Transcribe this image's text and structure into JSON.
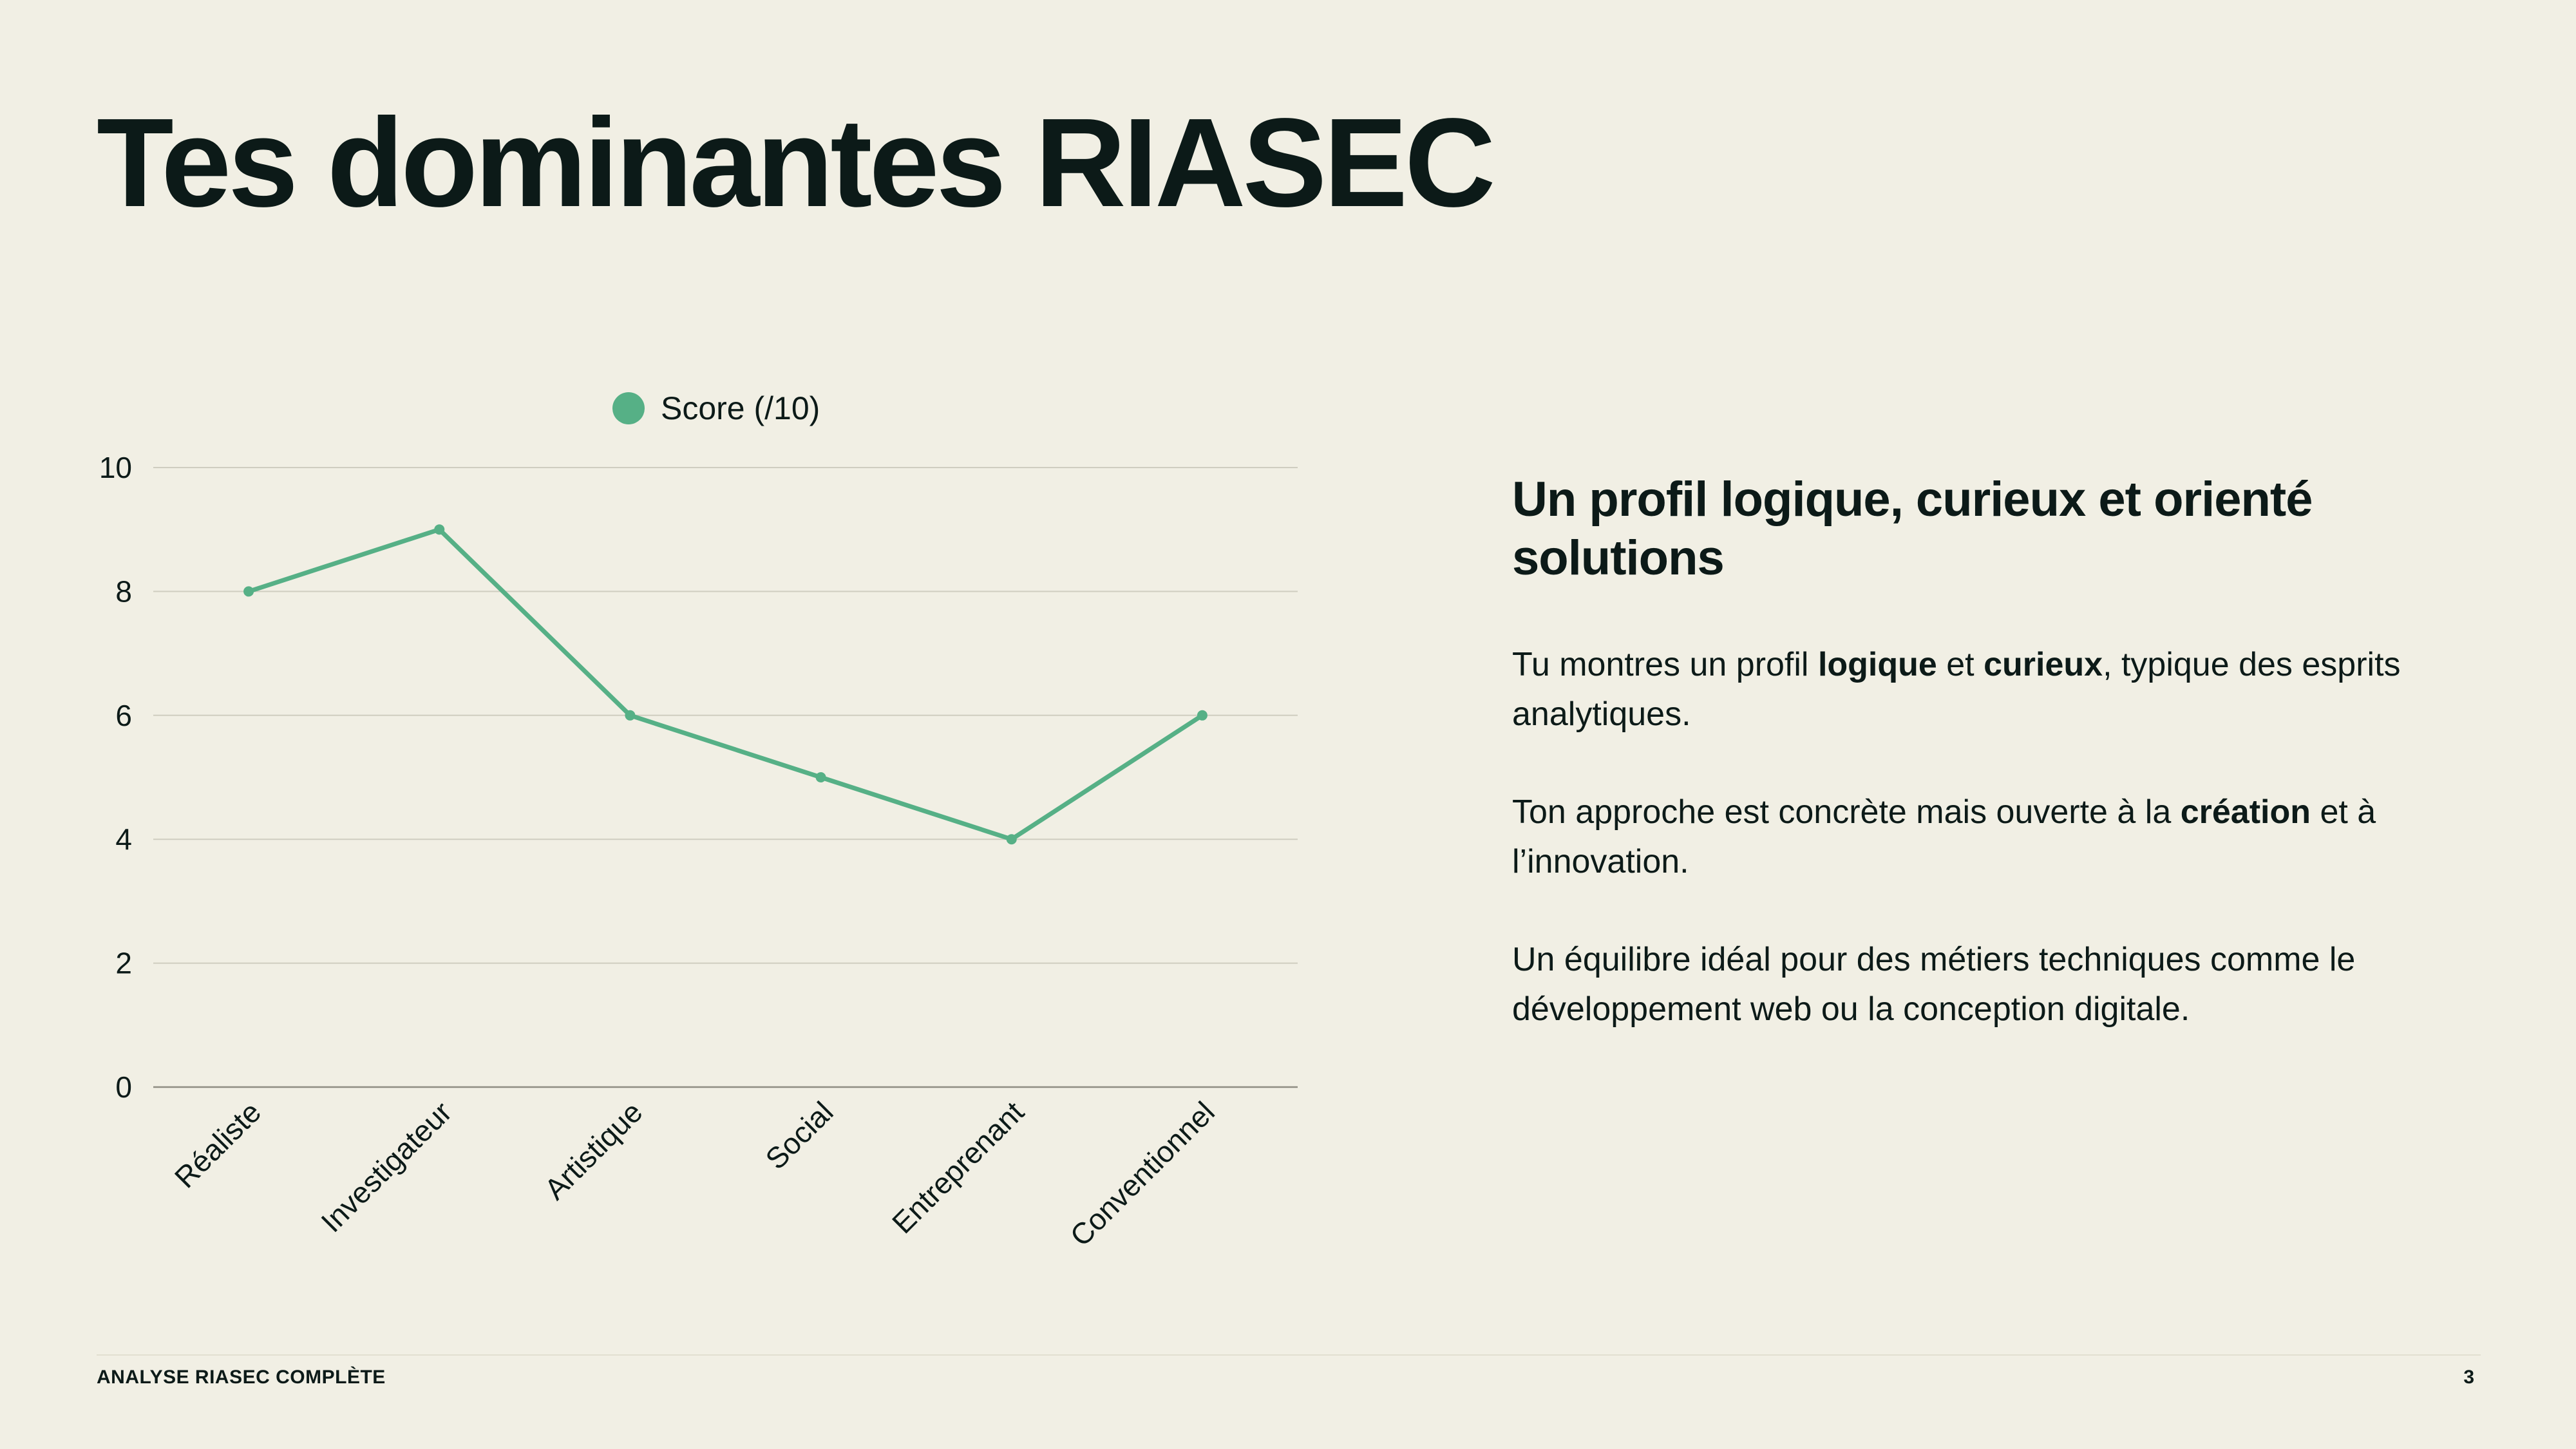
{
  "page": {
    "title": "Tes dominantes RIASEC",
    "footer_left": "ANALYSE RIASEC COMPLÈTE",
    "page_number": "3"
  },
  "panel": {
    "heading": "Un profil logique, curieux et orienté solutions",
    "paragraphs": [
      [
        {
          "text": "Tu montres un profil ",
          "bold": false
        },
        {
          "text": "logique",
          "bold": true
        },
        {
          "text": " et ",
          "bold": false
        },
        {
          "text": "curieux",
          "bold": true
        },
        {
          "text": ", typique des esprits analytiques.",
          "bold": false
        }
      ],
      [
        {
          "text": "Ton approche est concrète mais ouverte à la ",
          "bold": false
        },
        {
          "text": "création",
          "bold": true
        },
        {
          "text": " et à l’innovation.",
          "bold": false
        }
      ],
      [
        {
          "text": "Un équilibre idéal pour des métiers techniques comme le développement web ou la conception digitale.",
          "bold": false
        }
      ]
    ]
  },
  "colors": {
    "background": "#f1efe4",
    "text": "#0c1a18",
    "line": "#56b086",
    "grid": "#cfcdc0",
    "axis": "#8f8d82"
  },
  "chart_data": {
    "type": "line",
    "categories": [
      "Réaliste",
      "Investigateur",
      "Artistique",
      "Social",
      "Entreprenant",
      "Conventionnel"
    ],
    "series": [
      {
        "name": "Score (/10)",
        "values": [
          8,
          9,
          6,
          5,
          4,
          6
        ],
        "color": "#56b086"
      }
    ],
    "ylim": [
      0,
      10
    ],
    "yticks": [
      0,
      2,
      4,
      6,
      8,
      10
    ],
    "grid": true,
    "legend": "top-center",
    "title": "",
    "xlabel": "",
    "ylabel": ""
  }
}
